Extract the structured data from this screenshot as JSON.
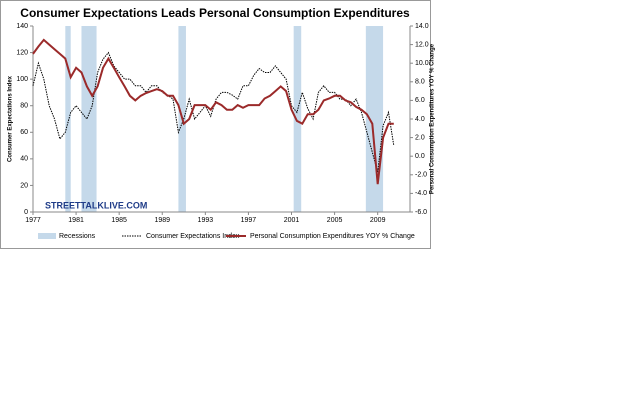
{
  "chart_data": {
    "type": "line",
    "title": "Consumer Expectations Leads Personal Consumption Expenditures",
    "y_label": "Consumer Expectations Index",
    "y2_label": "Personal Consumption Expenditures YOY % Change",
    "watermark": "STREETTALKLIVE.COM",
    "xlim": [
      1977,
      2012
    ],
    "xticks": [
      1977,
      1981,
      1985,
      1989,
      1993,
      1997,
      2001,
      2005,
      2009
    ],
    "ylim": [
      0,
      140
    ],
    "yticks": [
      0,
      20,
      40,
      60,
      80,
      100,
      120,
      140
    ],
    "y2lim": [
      -6,
      14
    ],
    "y2ticks": [
      {
        "value": -6,
        "label": "-6.0"
      },
      {
        "value": -4,
        "label": "-4.0"
      },
      {
        "value": -2,
        "label": "-2.0"
      },
      {
        "value": 0,
        "label": "0.0"
      },
      {
        "value": 2,
        "label": "2.0"
      },
      {
        "value": 4,
        "label": "4.0"
      },
      {
        "value": 6,
        "label": "6.0"
      },
      {
        "value": 8,
        "label": "8.0"
      },
      {
        "value": 10,
        "label": "10.0"
      },
      {
        "value": 12,
        "label": "12.0"
      },
      {
        "value": 14,
        "label": "14.0"
      }
    ],
    "recessions": {
      "name": "Recessions",
      "color": "#c5d9ea",
      "periods": [
        [
          1980,
          1980.5
        ],
        [
          1981.5,
          1982.9
        ],
        [
          1990.5,
          1991.2
        ],
        [
          2001.2,
          2001.9
        ],
        [
          2007.9,
          2009.5
        ]
      ]
    },
    "x": [
      1977,
      1977.5,
      1978,
      1978.5,
      1979,
      1979.5,
      1980,
      1980.5,
      1981,
      1981.5,
      1982,
      1982.5,
      1983,
      1983.5,
      1984,
      1984.5,
      1985,
      1985.5,
      1986,
      1986.5,
      1987,
      1987.5,
      1988,
      1988.5,
      1989,
      1989.5,
      1990,
      1990.5,
      1991,
      1991.5,
      1992,
      1992.5,
      1993,
      1993.5,
      1994,
      1994.5,
      1995,
      1995.5,
      1996,
      1996.5,
      1997,
      1997.5,
      1998,
      1998.5,
      1999,
      1999.5,
      2000,
      2000.5,
      2001,
      2001.5,
      2002,
      2002.5,
      2003,
      2003.5,
      2004,
      2004.5,
      2005,
      2005.5,
      2006,
      2006.5,
      2007,
      2007.5,
      2008,
      2008.5,
      2009,
      2009.5,
      2010,
      2010.5
    ],
    "series": [
      {
        "name": "Consumer Expectations Index",
        "color": "#000000",
        "dashed": true,
        "axis": "y",
        "values": [
          95,
          112,
          100,
          80,
          70,
          55,
          60,
          75,
          80,
          75,
          70,
          80,
          105,
          115,
          120,
          110,
          105,
          100,
          100,
          95,
          95,
          90,
          95,
          95,
          90,
          88,
          85,
          60,
          70,
          85,
          70,
          75,
          80,
          72,
          85,
          90,
          90,
          88,
          85,
          95,
          95,
          103,
          108,
          105,
          105,
          110,
          105,
          100,
          80,
          75,
          90,
          78,
          70,
          90,
          95,
          90,
          90,
          85,
          85,
          80,
          85,
          75,
          60,
          45,
          30,
          65,
          75,
          50
        ]
      },
      {
        "name": "Personal Consumption Expenditures YOY % Change",
        "color": "#9b2a2a",
        "dashed": false,
        "axis": "y2",
        "values": [
          11.0,
          11.8,
          12.5,
          12.0,
          11.5,
          11.0,
          10.5,
          8.5,
          9.5,
          9.0,
          7.5,
          6.5,
          7.5,
          9.5,
          10.5,
          9.5,
          8.5,
          7.5,
          6.5,
          6.0,
          6.5,
          6.8,
          7.0,
          7.2,
          7.0,
          6.5,
          6.5,
          5.5,
          3.5,
          4.0,
          5.5,
          5.5,
          5.5,
          5.0,
          5.8,
          5.5,
          5.0,
          5.0,
          5.5,
          5.2,
          5.5,
          5.5,
          5.5,
          6.2,
          6.5,
          7.0,
          7.5,
          7.0,
          5.0,
          3.8,
          3.5,
          4.5,
          4.5,
          5.0,
          6.0,
          6.2,
          6.5,
          6.5,
          6.0,
          5.8,
          5.3,
          5.0,
          4.5,
          3.5,
          -3.0,
          2.0,
          3.5,
          3.5
        ]
      }
    ]
  }
}
